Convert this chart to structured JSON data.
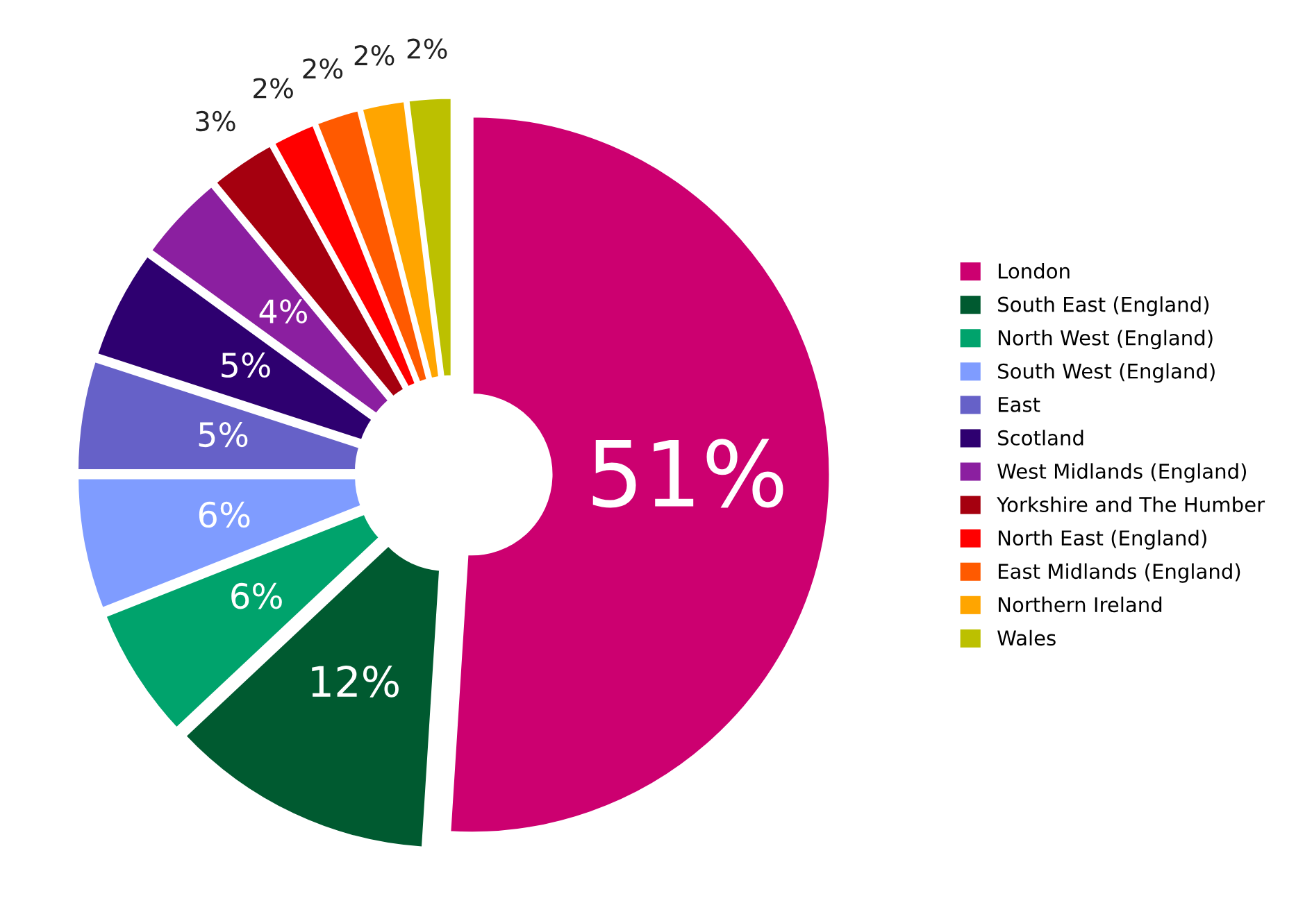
{
  "chart_data": {
    "type": "donut",
    "categories": [
      "London",
      "South East (England)",
      "North West (England)",
      "South West (England)",
      "East",
      "Scotland",
      "West Midlands (England)",
      "Yorkshire and The Humber",
      "North East (England)",
      "East Midlands (England)",
      "Northern Ireland",
      "Wales"
    ],
    "values": [
      51,
      12,
      6,
      6,
      5,
      5,
      4,
      3,
      2,
      2,
      2,
      2
    ],
    "value_labels": [
      "51%",
      "12%",
      "6%",
      "6%",
      "5%",
      "5%",
      "4%",
      "3%",
      "2%",
      "2%",
      "2%",
      "2%"
    ],
    "colors": [
      "#cc0070",
      "#005a30",
      "#00a36c",
      "#7f9cff",
      "#6661c8",
      "#2e0070",
      "#8b1fa0",
      "#a5000f",
      "#ff0000",
      "#ff5a00",
      "#ffa500",
      "#bcc000"
    ],
    "legend": "right"
  }
}
